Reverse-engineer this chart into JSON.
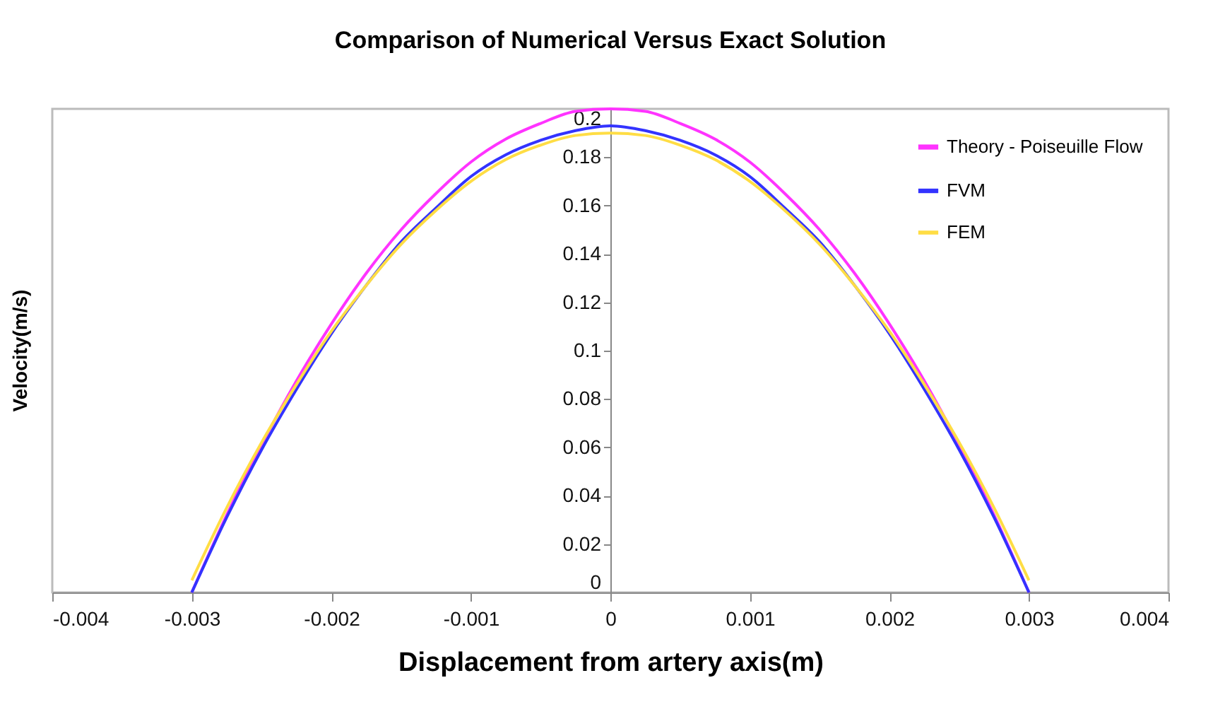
{
  "chart_data": {
    "type": "line",
    "title": "Comparison of Numerical Versus Exact Solution",
    "xlabel": "Displacement from artery axis(m)",
    "ylabel": "Velocity(m/s)",
    "x": [
      -0.003,
      -0.00275,
      -0.0025,
      -0.00225,
      -0.002,
      -0.00175,
      -0.0015,
      -0.00125,
      -0.001,
      -0.00075,
      -0.0005,
      -0.00025,
      0,
      0.00025,
      0.0005,
      0.00075,
      0.001,
      0.00125,
      0.0015,
      0.00175,
      0.002,
      0.00225,
      0.0025,
      0.00275,
      0.003
    ],
    "series": [
      {
        "name": "Theory - Poiseuille Flow",
        "color": "#ff33ff",
        "values": [
          0,
          0.032,
          0.061,
          0.0875,
          0.111,
          0.132,
          0.15,
          0.165,
          0.178,
          0.1875,
          0.194,
          0.199,
          0.2,
          0.199,
          0.194,
          0.1875,
          0.178,
          0.165,
          0.15,
          0.132,
          0.111,
          0.0875,
          0.061,
          0.032,
          0
        ]
      },
      {
        "name": "FVM",
        "color": "#3333ff",
        "values": [
          0,
          0.031,
          0.059,
          0.084,
          0.107,
          0.127,
          0.145,
          0.159,
          0.172,
          0.181,
          0.187,
          0.191,
          0.193,
          0.191,
          0.187,
          0.181,
          0.172,
          0.159,
          0.145,
          0.127,
          0.107,
          0.084,
          0.059,
          0.031,
          0
        ]
      },
      {
        "name": "FEM",
        "color": "#ffdd44",
        "values": [
          0.005,
          0.035,
          0.062,
          0.086,
          0.108,
          0.127,
          0.144,
          0.158,
          0.17,
          0.179,
          0.185,
          0.189,
          0.19,
          0.189,
          0.185,
          0.179,
          0.17,
          0.158,
          0.144,
          0.127,
          0.108,
          0.086,
          0.062,
          0.035,
          0.005
        ]
      }
    ],
    "xlim": [
      -0.004,
      0.004
    ],
    "xticks": [
      -0.004,
      -0.003,
      -0.002,
      -0.001,
      0,
      0.001,
      0.002,
      0.003,
      0.004
    ],
    "ylim": [
      0,
      0.2
    ],
    "yticks": [
      0,
      0.02,
      0.04,
      0.06,
      0.08,
      0.1,
      0.12,
      0.14,
      0.16,
      0.18,
      0.2
    ],
    "grid": false,
    "legend": "top right",
    "marker": "none",
    "line_style": "solid"
  }
}
